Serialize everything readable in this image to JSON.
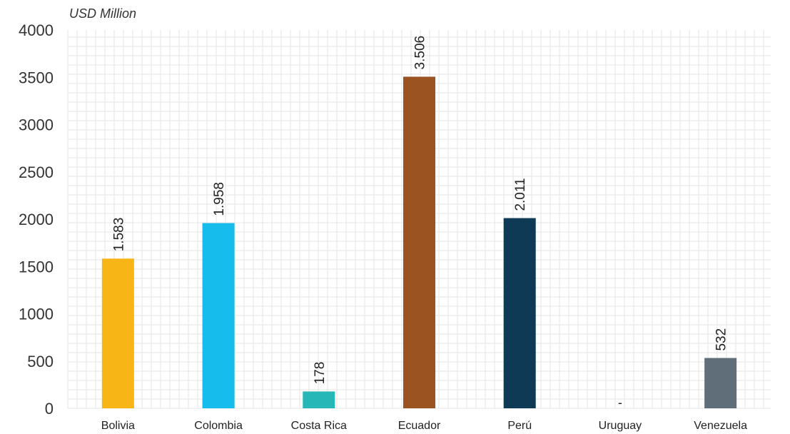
{
  "chart_data": {
    "type": "bar",
    "unit_label": "USD Million",
    "categories": [
      "Bolivia",
      "Colombia",
      "Costa Rica",
      "Ecuador",
      "Perú",
      "Uruguay",
      "Venezuela"
    ],
    "values": [
      1583,
      1958,
      178,
      3506,
      2011,
      0,
      532
    ],
    "value_labels": [
      "1.583",
      "1.958",
      "178",
      "3.506",
      "2.011",
      "-",
      "532"
    ],
    "colors": [
      "#F7B616",
      "#16BCEB",
      "#28B7B7",
      "#9C5322",
      "#0E3A55",
      "#9AA5AE",
      "#5F6E78"
    ],
    "y_ticks": [
      0,
      500,
      1000,
      1500,
      2000,
      2500,
      3000,
      3500,
      4000
    ],
    "ylim": [
      0,
      4000
    ],
    "grid": true,
    "grid_color": "#e6e6e6",
    "title": "",
    "xlabel": "",
    "ylabel": "USD Million"
  }
}
